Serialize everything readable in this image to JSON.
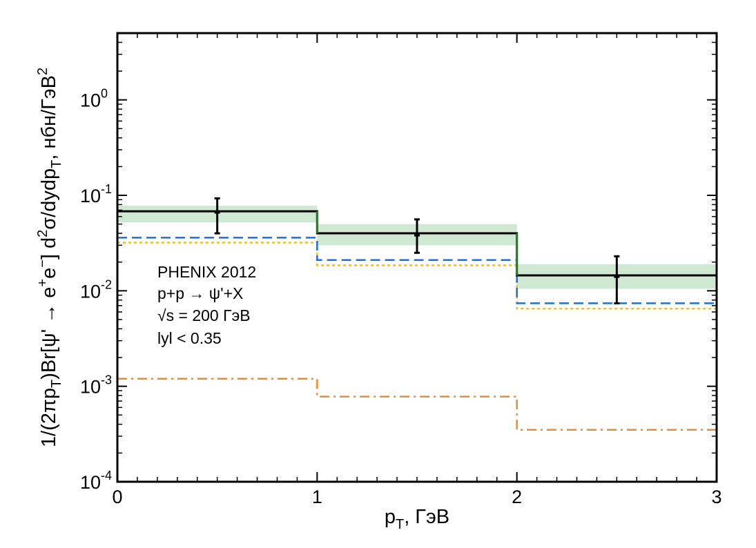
{
  "chart_data": {
    "type": "step",
    "xlabel": {
      "main": "p",
      "sub": "T",
      "rest": ", ГэВ"
    },
    "ylabel_parts": [
      {
        "t": "1/(2πp",
        "s": "n"
      },
      {
        "t": "T",
        "s": "sub"
      },
      {
        "t": ")Br[ψ' → e",
        "s": "n"
      },
      {
        "t": "+",
        "s": "sup"
      },
      {
        "t": "e",
        "s": "n"
      },
      {
        "t": "−",
        "s": "sup"
      },
      {
        "t": "] d",
        "s": "n"
      },
      {
        "t": "2",
        "s": "sup"
      },
      {
        "t": "σ/dydp",
        "s": "n"
      },
      {
        "t": "T",
        "s": "sub"
      },
      {
        "t": ", нбн/ГэВ",
        "s": "n"
      },
      {
        "t": "2",
        "s": "sup"
      }
    ],
    "xlim": [
      0,
      3
    ],
    "ylim": [
      0.0001,
      5
    ],
    "yscale": "log",
    "x_ticks": [
      {
        "v": 0,
        "label": "0"
      },
      {
        "v": 1,
        "label": "1"
      },
      {
        "v": 2,
        "label": "2"
      },
      {
        "v": 3,
        "label": "3"
      }
    ],
    "y_ticks": [
      {
        "v": 0.0001,
        "base": "10",
        "exp": "-4"
      },
      {
        "v": 0.001,
        "base": "10",
        "exp": "-3"
      },
      {
        "v": 0.01,
        "base": "10",
        "exp": "-2"
      },
      {
        "v": 0.1,
        "base": "10",
        "exp": "-1"
      },
      {
        "v": 1,
        "base": "10",
        "exp": "0"
      }
    ],
    "bins": [
      [
        0,
        1
      ],
      [
        1,
        2
      ],
      [
        2,
        3
      ]
    ],
    "band": {
      "color": "#cfe8d2",
      "low": [
        0.052,
        0.03,
        0.0105
      ],
      "high": [
        0.078,
        0.05,
        0.019
      ]
    },
    "series": [
      {
        "values": [
          0.068,
          0.04,
          0.0145
        ],
        "color": "#000000",
        "dash": "solid",
        "width": 3
      },
      {
        "values": [
          0.068,
          0.04,
          0.0145
        ],
        "color": "#2ca02c",
        "dash": "solid",
        "width": 2,
        "role": "step-risers"
      },
      {
        "values": [
          0.036,
          0.021,
          0.0074
        ],
        "color": "#1f6fd4",
        "dash": "long-dash",
        "width": 2.5
      },
      {
        "values": [
          0.032,
          0.0185,
          0.0065
        ],
        "color": "#f2bc1b",
        "dash": "dotted",
        "width": 2.5
      },
      {
        "values": [
          0.0012,
          0.00078,
          0.00035
        ],
        "color": "#ef8a2a",
        "dash": "dash-dot",
        "width": 2.5
      }
    ],
    "data_points": [
      {
        "x": 0.5,
        "y": 0.066,
        "ylow": 0.04,
        "yhigh": 0.093
      },
      {
        "x": 1.5,
        "y": 0.038,
        "ylow": 0.025,
        "yhigh": 0.056
      },
      {
        "x": 2.5,
        "y": 0.014,
        "ylow": 0.0074,
        "yhigh": 0.023
      }
    ],
    "annotation": [
      "PHENIX 2012",
      "p+p → ψ'+X",
      "√s = 200 ГэВ",
      "lyl < 0.35"
    ]
  }
}
